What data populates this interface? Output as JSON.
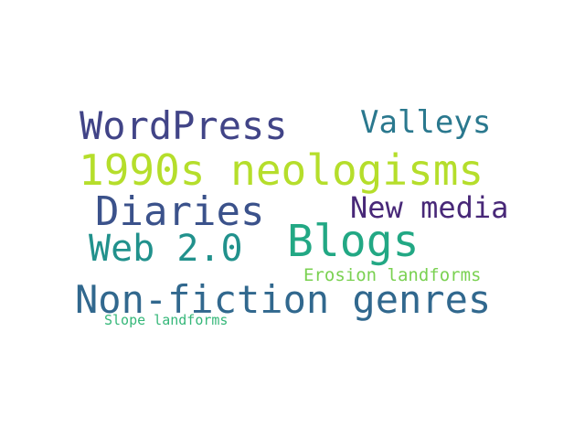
{
  "words": [
    {
      "text": "WordPress",
      "color": "#414487"
    },
    {
      "text": "Valleys",
      "color": "#2a788e"
    },
    {
      "text": "1990s neologisms",
      "color": "#b5de2b"
    },
    {
      "text": "Diaries",
      "color": "#3b528b"
    },
    {
      "text": "New media",
      "color": "#482878"
    },
    {
      "text": "Blogs",
      "color": "#22a884"
    },
    {
      "text": "Web 2.0",
      "color": "#21918c"
    },
    {
      "text": "Erosion landforms",
      "color": "#7ad151"
    },
    {
      "text": "Non-fiction genres",
      "color": "#31688e"
    },
    {
      "text": "Slope landforms",
      "color": "#35b779"
    }
  ]
}
